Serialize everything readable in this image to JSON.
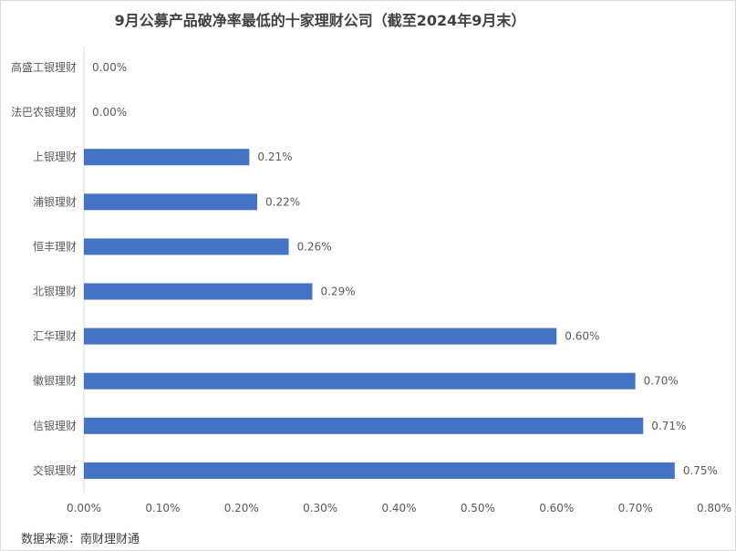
{
  "chart_data": {
    "type": "bar",
    "orientation": "horizontal",
    "title": "9月公募产品破净率最低的十家理财公司（截至2024年9月末）",
    "categories": [
      "高盛工银理财",
      "法巴农银理财",
      "上银理财",
      "浦银理财",
      "恒丰理财",
      "北银理财",
      "汇华理财",
      "徽银理财",
      "信银理财",
      "交银理财"
    ],
    "values": [
      0.0,
      0.0,
      0.21,
      0.22,
      0.26,
      0.29,
      0.6,
      0.7,
      0.71,
      0.75
    ],
    "data_labels": [
      "0.00%",
      "0.00%",
      "0.21%",
      "0.22%",
      "0.26%",
      "0.29%",
      "0.60%",
      "0.70%",
      "0.71%",
      "0.75%"
    ],
    "xlim": [
      0,
      0.8
    ],
    "x_ticks": [
      "0.00%",
      "0.10%",
      "0.20%",
      "0.30%",
      "0.40%",
      "0.50%",
      "0.60%",
      "0.70%",
      "0.80%"
    ],
    "xlabel": "",
    "ylabel": "",
    "grid": false,
    "bar_color": "#4472c4"
  },
  "source_note": "数据来源：南财理财通"
}
